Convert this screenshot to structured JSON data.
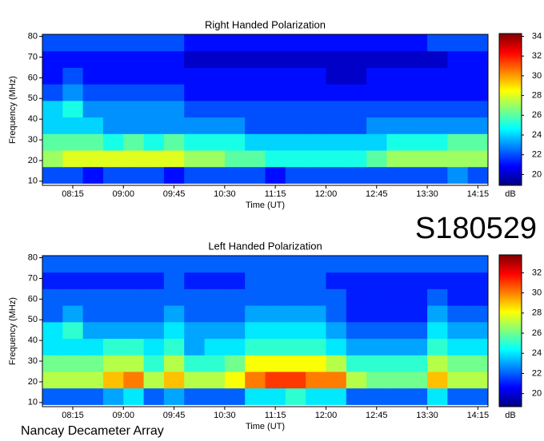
{
  "chart_data": [
    {
      "type": "heatmap",
      "title": "Right Handed Polarization",
      "x_label": "Time (UT)",
      "y_label": "Frequency (MHz)",
      "z_label": "dB",
      "annotations": [
        "S180529",
        "Nancay Decameter Array"
      ],
      "colormap": [
        "#00007f",
        "#0000ff",
        "#007fff",
        "#00ffff",
        "#7fff7f",
        "#ffff00",
        "#ff7f00",
        "#ff0000",
        "#7f0000"
      ],
      "x": [
        7.95,
        8.25,
        8.55,
        8.85,
        9.15,
        9.45,
        9.75,
        10.05,
        10.35,
        10.65,
        10.95,
        11.25,
        11.55,
        11.85,
        12.15,
        12.45,
        12.75,
        13.05,
        13.35,
        13.65,
        13.95,
        14.25
      ],
      "y": [
        13,
        21,
        29,
        37,
        45,
        53,
        61,
        69,
        77
      ],
      "values": [
        [
          22,
          22,
          21,
          22,
          22,
          22,
          21,
          22,
          22,
          22,
          22,
          21,
          22,
          22,
          22,
          22,
          22,
          22,
          22,
          22,
          23,
          22
        ],
        [
          27,
          28,
          28,
          28,
          28,
          28,
          28,
          27,
          27,
          26,
          26,
          25,
          25,
          25,
          25,
          25,
          26,
          27,
          27,
          27,
          27,
          27
        ],
        [
          26,
          26,
          26,
          25,
          26,
          25,
          26,
          25,
          25,
          25,
          24,
          24,
          24,
          24,
          24,
          24,
          24,
          25,
          25,
          25,
          26,
          26
        ],
        [
          24,
          24,
          24,
          23,
          23,
          23,
          23,
          23,
          23,
          23,
          22,
          22,
          22,
          22,
          22,
          22,
          23,
          23,
          23,
          23,
          23,
          23
        ],
        [
          24,
          25,
          23,
          23,
          23,
          23,
          23,
          22,
          22,
          22,
          22,
          22,
          22,
          22,
          22,
          22,
          22,
          22,
          22,
          22,
          22,
          22
        ],
        [
          22,
          23,
          22,
          22,
          22,
          22,
          22,
          21,
          21,
          21,
          21,
          21,
          21,
          21,
          21,
          21,
          21,
          21,
          21,
          21,
          21,
          21
        ],
        [
          21,
          22,
          21,
          21,
          21,
          21,
          21,
          21,
          21,
          21,
          21,
          21,
          21,
          21,
          20,
          20,
          21,
          21,
          21,
          21,
          21,
          21
        ],
        [
          21,
          21,
          21,
          21,
          21,
          21,
          21,
          20,
          20,
          20,
          20,
          20,
          20,
          20,
          20,
          20,
          20,
          20,
          20,
          20,
          21,
          21
        ],
        [
          22,
          22,
          22,
          22,
          22,
          22,
          22,
          21,
          21,
          21,
          21,
          21,
          21,
          21,
          21,
          21,
          21,
          21,
          21,
          22,
          22,
          22
        ]
      ],
      "xlim": [
        7.8,
        14.4
      ],
      "ylim": [
        8,
        81
      ],
      "zlim": [
        18.9,
        34.2
      ],
      "xticks": [
        {
          "value": 8.25,
          "label": "08:15"
        },
        {
          "value": 9,
          "label": "09:00"
        },
        {
          "value": 9.75,
          "label": "09:45"
        },
        {
          "value": 10.5,
          "label": "10:30"
        },
        {
          "value": 11.25,
          "label": "11:15"
        },
        {
          "value": 12,
          "label": "12:00"
        },
        {
          "value": 12.75,
          "label": "12:45"
        },
        {
          "value": 13.5,
          "label": "13:30"
        },
        {
          "value": 14.25,
          "label": "14:15"
        }
      ],
      "yticks": [
        10,
        20,
        30,
        40,
        50,
        60,
        70,
        80
      ],
      "zticks": [
        20,
        22,
        24,
        26,
        28,
        30,
        32,
        34
      ]
    },
    {
      "type": "heatmap",
      "title": "Left Handed Polarization",
      "x_label": "Time (UT)",
      "y_label": "Frequency (MHz)",
      "z_label": "dB",
      "colormap": [
        "#00007f",
        "#0000ff",
        "#007fff",
        "#00ffff",
        "#7fff7f",
        "#ffff00",
        "#ff7f00",
        "#ff0000",
        "#7f0000"
      ],
      "x": [
        7.95,
        8.25,
        8.55,
        8.85,
        9.15,
        9.45,
        9.75,
        10.05,
        10.35,
        10.65,
        10.95,
        11.25,
        11.55,
        11.85,
        12.15,
        12.45,
        12.75,
        13.05,
        13.35,
        13.65,
        13.95,
        14.25
      ],
      "y": [
        13,
        21,
        29,
        37,
        45,
        53,
        61,
        69,
        77
      ],
      "values": [
        [
          22,
          22,
          22,
          23,
          24,
          22,
          23,
          22,
          22,
          22,
          24,
          24,
          25,
          24,
          24,
          22,
          22,
          22,
          22,
          24,
          22,
          22
        ],
        [
          27,
          27,
          27,
          29,
          30,
          27,
          29,
          27,
          27,
          28,
          30,
          31,
          31,
          30,
          30,
          27,
          26,
          26,
          26,
          29,
          27,
          27
        ],
        [
          26,
          26,
          26,
          27,
          27,
          25,
          27,
          25,
          25,
          26,
          28,
          28,
          28,
          28,
          27,
          25,
          25,
          25,
          25,
          27,
          26,
          26
        ],
        [
          24,
          24,
          24,
          25,
          25,
          24,
          25,
          23,
          24,
          24,
          25,
          25,
          25,
          25,
          24,
          23,
          23,
          23,
          23,
          25,
          24,
          24
        ],
        [
          24,
          25,
          23,
          23,
          23,
          23,
          24,
          23,
          23,
          23,
          24,
          24,
          24,
          24,
          23,
          22,
          22,
          22,
          22,
          24,
          23,
          23
        ],
        [
          22,
          23,
          22,
          22,
          22,
          22,
          23,
          22,
          22,
          22,
          23,
          23,
          23,
          23,
          22,
          21,
          21,
          21,
          21,
          23,
          22,
          22
        ],
        [
          22,
          22,
          22,
          22,
          22,
          22,
          22,
          22,
          22,
          22,
          22,
          22,
          22,
          22,
          22,
          21,
          21,
          21,
          21,
          22,
          21,
          21
        ],
        [
          21,
          21,
          21,
          21,
          21,
          21,
          22,
          21,
          21,
          21,
          22,
          22,
          22,
          22,
          21,
          21,
          21,
          21,
          21,
          21,
          21,
          21
        ],
        [
          22,
          22,
          22,
          22,
          22,
          22,
          22,
          22,
          22,
          22,
          22,
          22,
          22,
          22,
          22,
          22,
          22,
          22,
          22,
          22,
          22,
          22
        ]
      ],
      "xlim": [
        7.8,
        14.4
      ],
      "ylim": [
        8,
        81
      ],
      "zlim": [
        18.7,
        33.7
      ],
      "xticks": [
        {
          "value": 8.25,
          "label": "08:15"
        },
        {
          "value": 9,
          "label": "09:00"
        },
        {
          "value": 9.75,
          "label": "09:45"
        },
        {
          "value": 10.5,
          "label": "10:30"
        },
        {
          "value": 11.25,
          "label": "11:15"
        },
        {
          "value": 12,
          "label": "12:00"
        },
        {
          "value": 12.75,
          "label": "12:45"
        },
        {
          "value": 13.5,
          "label": "13:30"
        },
        {
          "value": 14.25,
          "label": "14:15"
        }
      ],
      "yticks": [
        10,
        20,
        30,
        40,
        50,
        60,
        70,
        80
      ],
      "zticks": [
        20,
        22,
        24,
        26,
        28,
        30,
        32
      ]
    }
  ]
}
